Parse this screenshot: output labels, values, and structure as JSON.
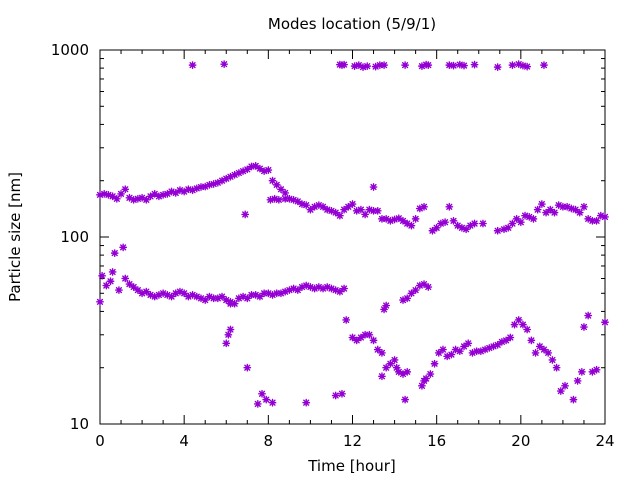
{
  "chart_data": {
    "type": "scatter",
    "title": "Modes location (5/9/1)",
    "xlabel": "Time [hour]",
    "ylabel": "Particle size [nm]",
    "xlim": [
      0,
      24
    ],
    "ylim": [
      10,
      1000
    ],
    "yscale": "log",
    "xticks": [
      0,
      4,
      8,
      12,
      16,
      20,
      24
    ],
    "yticks": [
      10,
      100,
      1000
    ],
    "ytick_labels": [
      "10",
      "100",
      "1000"
    ],
    "grid": false,
    "legend": "none",
    "marker_color": "#9400D3",
    "series": [
      {
        "values": [
          [
            4.4,
            830
          ],
          [
            5.9,
            840
          ],
          [
            11.4,
            835
          ],
          [
            11.5,
            830
          ],
          [
            11.6,
            835
          ],
          [
            12.1,
            820
          ],
          [
            12.3,
            830
          ],
          [
            12.5,
            810
          ],
          [
            12.7,
            820
          ],
          [
            13.1,
            815
          ],
          [
            13.3,
            830
          ],
          [
            13.5,
            830
          ],
          [
            14.5,
            830
          ],
          [
            15.3,
            820
          ],
          [
            15.5,
            835
          ],
          [
            15.6,
            830
          ],
          [
            16.6,
            830
          ],
          [
            16.8,
            825
          ],
          [
            17.1,
            835
          ],
          [
            17.3,
            825
          ],
          [
            17.8,
            835
          ],
          [
            18.9,
            810
          ],
          [
            19.6,
            830
          ],
          [
            19.9,
            840
          ],
          [
            20.1,
            825
          ],
          [
            20.3,
            815
          ],
          [
            21.1,
            830
          ],
          [
            0,
            168
          ],
          [
            0.2,
            170
          ],
          [
            0.4,
            168
          ],
          [
            0.6,
            165
          ],
          [
            0.8,
            160
          ],
          [
            1.0,
            170
          ],
          [
            1.2,
            180
          ],
          [
            1.4,
            162
          ],
          [
            1.6,
            158
          ],
          [
            1.8,
            160
          ],
          [
            2.0,
            162
          ],
          [
            2.2,
            158
          ],
          [
            2.4,
            165
          ],
          [
            2.6,
            170
          ],
          [
            2.8,
            165
          ],
          [
            3.0,
            168
          ],
          [
            3.2,
            170
          ],
          [
            3.4,
            175
          ],
          [
            3.6,
            172
          ],
          [
            3.8,
            178
          ],
          [
            4.0,
            175
          ],
          [
            4.2,
            180
          ],
          [
            4.4,
            178
          ],
          [
            4.6,
            182
          ],
          [
            4.8,
            185
          ],
          [
            5.0,
            186
          ],
          [
            5.2,
            190
          ],
          [
            5.4,
            192
          ],
          [
            5.6,
            195
          ],
          [
            5.8,
            200
          ],
          [
            6.0,
            205
          ],
          [
            6.2,
            210
          ],
          [
            6.4,
            215
          ],
          [
            6.6,
            220
          ],
          [
            6.8,
            225
          ],
          [
            7.0,
            230
          ],
          [
            7.2,
            238
          ],
          [
            7.4,
            240
          ],
          [
            7.6,
            232
          ],
          [
            7.8,
            225
          ],
          [
            8.0,
            228
          ],
          [
            8.2,
            200
          ],
          [
            8.4,
            190
          ],
          [
            8.6,
            180
          ],
          [
            8.8,
            172
          ],
          [
            6.9,
            132
          ],
          [
            8.1,
            158
          ],
          [
            8.3,
            160
          ],
          [
            8.5,
            158
          ],
          [
            8.8,
            160
          ],
          [
            9.0,
            160
          ],
          [
            9.2,
            158
          ],
          [
            9.4,
            155
          ],
          [
            9.6,
            150
          ],
          [
            9.8,
            148
          ],
          [
            10.0,
            140
          ],
          [
            10.2,
            145
          ],
          [
            10.4,
            148
          ],
          [
            10.6,
            145
          ],
          [
            10.8,
            140
          ],
          [
            11.0,
            138
          ],
          [
            11.2,
            135
          ],
          [
            11.4,
            130
          ],
          [
            11.6,
            140
          ],
          [
            11.8,
            145
          ],
          [
            12.0,
            150
          ],
          [
            12.2,
            138
          ],
          [
            12.4,
            140
          ],
          [
            12.6,
            132
          ],
          [
            12.8,
            140
          ],
          [
            13.0,
            138
          ],
          [
            13.2,
            138
          ],
          [
            13.4,
            125
          ],
          [
            13.6,
            125
          ],
          [
            13.8,
            122
          ],
          [
            14.0,
            124
          ],
          [
            14.2,
            126
          ],
          [
            14.4,
            122
          ],
          [
            14.6,
            118
          ],
          [
            14.8,
            115
          ],
          [
            15.0,
            125
          ],
          [
            15.2,
            142
          ],
          [
            15.4,
            145
          ],
          [
            13.0,
            185
          ],
          [
            15.8,
            108
          ],
          [
            16.0,
            112
          ],
          [
            16.2,
            118
          ],
          [
            16.4,
            120
          ],
          [
            16.6,
            145
          ],
          [
            16.8,
            122
          ],
          [
            17.0,
            115
          ],
          [
            17.2,
            112
          ],
          [
            17.4,
            110
          ],
          [
            17.6,
            115
          ],
          [
            17.8,
            118
          ],
          [
            18.2,
            118
          ],
          [
            18.9,
            108
          ],
          [
            19.2,
            110
          ],
          [
            19.4,
            112
          ],
          [
            19.6,
            118
          ],
          [
            19.8,
            125
          ],
          [
            20.0,
            120
          ],
          [
            20.2,
            130
          ],
          [
            20.4,
            128
          ],
          [
            20.6,
            125
          ],
          [
            20.8,
            140
          ],
          [
            21.0,
            150
          ],
          [
            21.2,
            135
          ],
          [
            21.4,
            140
          ],
          [
            21.6,
            135
          ],
          [
            21.8,
            148
          ],
          [
            22.0,
            145
          ],
          [
            22.2,
            145
          ],
          [
            22.4,
            142
          ],
          [
            22.6,
            140
          ],
          [
            22.8,
            135
          ],
          [
            23.0,
            145
          ],
          [
            23.2,
            125
          ],
          [
            23.4,
            122
          ],
          [
            23.6,
            122
          ],
          [
            23.8,
            130
          ],
          [
            24.0,
            128
          ],
          [
            0,
            45
          ],
          [
            0.1,
            62
          ],
          [
            0.3,
            55
          ],
          [
            0.5,
            58
          ],
          [
            0.6,
            65
          ],
          [
            0.7,
            82
          ],
          [
            0.9,
            52
          ],
          [
            1.1,
            88
          ],
          [
            1.2,
            60
          ],
          [
            1.4,
            56
          ],
          [
            1.6,
            54
          ],
          [
            1.8,
            52
          ],
          [
            2.0,
            50
          ],
          [
            2.2,
            51
          ],
          [
            2.4,
            49
          ],
          [
            2.6,
            48
          ],
          [
            2.8,
            49
          ],
          [
            3.0,
            50
          ],
          [
            3.2,
            49
          ],
          [
            3.4,
            48
          ],
          [
            3.6,
            50
          ],
          [
            3.8,
            51
          ],
          [
            4.0,
            50
          ],
          [
            4.2,
            48
          ],
          [
            4.4,
            49
          ],
          [
            4.6,
            48
          ],
          [
            4.8,
            47
          ],
          [
            5.0,
            46
          ],
          [
            5.2,
            48
          ],
          [
            5.4,
            47
          ],
          [
            5.6,
            47
          ],
          [
            5.8,
            48
          ],
          [
            6.0,
            46
          ],
          [
            6.2,
            45
          ],
          [
            6.4,
            44
          ],
          [
            6.6,
            47
          ],
          [
            6.8,
            48
          ],
          [
            7.0,
            47
          ],
          [
            7.2,
            49
          ],
          [
            7.4,
            49
          ],
          [
            7.6,
            48
          ],
          [
            7.8,
            50
          ],
          [
            8.0,
            50
          ],
          [
            8.2,
            49
          ],
          [
            8.4,
            50
          ],
          [
            8.6,
            50
          ],
          [
            8.8,
            51
          ],
          [
            9.0,
            52
          ],
          [
            9.2,
            53
          ],
          [
            9.4,
            52
          ],
          [
            9.6,
            54
          ],
          [
            9.8,
            55
          ],
          [
            10.0,
            54
          ],
          [
            10.2,
            53
          ],
          [
            10.4,
            54
          ],
          [
            10.6,
            53
          ],
          [
            10.8,
            54
          ],
          [
            11.0,
            53
          ],
          [
            11.2,
            52
          ],
          [
            11.4,
            51
          ],
          [
            11.6,
            53
          ],
          [
            6.0,
            27
          ],
          [
            6.1,
            30
          ],
          [
            6.2,
            32
          ],
          [
            6.2,
            44
          ],
          [
            7.0,
            20
          ],
          [
            7.5,
            12.8
          ],
          [
            7.7,
            14.5
          ],
          [
            7.9,
            13.5
          ],
          [
            8.2,
            13
          ],
          [
            9.8,
            13
          ],
          [
            11.2,
            14.2
          ],
          [
            11.5,
            14.5
          ],
          [
            11.7,
            36
          ],
          [
            12.0,
            29
          ],
          [
            12.2,
            28
          ],
          [
            12.4,
            29
          ],
          [
            12.6,
            30
          ],
          [
            12.8,
            30
          ],
          [
            13.0,
            28
          ],
          [
            13.2,
            25
          ],
          [
            13.4,
            24
          ],
          [
            13.5,
            41
          ],
          [
            13.6,
            43
          ],
          [
            13.4,
            18
          ],
          [
            13.6,
            20
          ],
          [
            13.8,
            21
          ],
          [
            14.0,
            22
          ],
          [
            14.1,
            20
          ],
          [
            14.2,
            19
          ],
          [
            14.4,
            18.5
          ],
          [
            14.6,
            19
          ],
          [
            14.4,
            46
          ],
          [
            14.6,
            47
          ],
          [
            14.8,
            50
          ],
          [
            15.0,
            52
          ],
          [
            15.2,
            55
          ],
          [
            15.4,
            56
          ],
          [
            15.6,
            54
          ],
          [
            15.3,
            16
          ],
          [
            15.5,
            17.5
          ],
          [
            15.7,
            18.5
          ],
          [
            15.9,
            21
          ],
          [
            16.1,
            24
          ],
          [
            16.3,
            25
          ],
          [
            16.5,
            23
          ],
          [
            16.7,
            23.5
          ],
          [
            16.9,
            25
          ],
          [
            17.1,
            24.5
          ],
          [
            17.3,
            26
          ],
          [
            17.5,
            27
          ],
          [
            17.7,
            24
          ],
          [
            17.9,
            24.5
          ],
          [
            18.1,
            24.5
          ],
          [
            18.3,
            25
          ],
          [
            18.5,
            25.5
          ],
          [
            18.7,
            26
          ],
          [
            18.9,
            26.5
          ],
          [
            19.1,
            27.5
          ],
          [
            19.3,
            28
          ],
          [
            19.5,
            29
          ],
          [
            19.7,
            34
          ],
          [
            19.9,
            36
          ],
          [
            20.1,
            34
          ],
          [
            20.3,
            32
          ],
          [
            20.5,
            28
          ],
          [
            20.7,
            24
          ],
          [
            20.9,
            26
          ],
          [
            21.1,
            25
          ],
          [
            21.3,
            24
          ],
          [
            21.5,
            22
          ],
          [
            21.7,
            20
          ],
          [
            21.9,
            15
          ],
          [
            22.1,
            16
          ],
          [
            22.5,
            13.5
          ],
          [
            22.7,
            17
          ],
          [
            22.9,
            19
          ],
          [
            23.0,
            33
          ],
          [
            23.2,
            38
          ],
          [
            23.4,
            19
          ],
          [
            23.6,
            19.5
          ],
          [
            24.0,
            35
          ],
          [
            15.4,
            17
          ],
          [
            14.5,
            13.5
          ]
        ]
      }
    ]
  }
}
